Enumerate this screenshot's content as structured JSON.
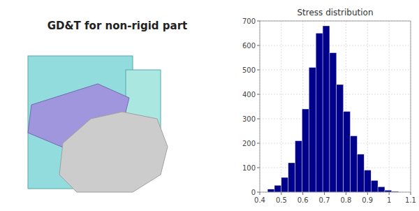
{
  "chart_data": {
    "type": "histogram",
    "title": "GD&T for non-rigid part",
    "subtitle": "Stress distribution",
    "bins": [
      0.436,
      0.468,
      0.5,
      0.532,
      0.564,
      0.596,
      0.628,
      0.66,
      0.692,
      0.724,
      0.756,
      0.788,
      0.82,
      0.852,
      0.884,
      0.916,
      0.948,
      0.98,
      1.012,
      1.044
    ],
    "values": [
      12,
      28,
      60,
      120,
      210,
      340,
      510,
      650,
      680,
      570,
      440,
      330,
      230,
      155,
      90,
      48,
      22,
      8,
      3
    ],
    "color": "#00008B",
    "xlim": [
      0.4,
      1.1
    ],
    "ylim": [
      0,
      700
    ],
    "xticks": [
      0.4,
      0.5,
      0.6,
      0.7,
      0.8,
      0.9,
      1.0,
      1.1
    ],
    "yticks": [
      0,
      100,
      200,
      300,
      400,
      500,
      600,
      700
    ],
    "grid": true
  }
}
